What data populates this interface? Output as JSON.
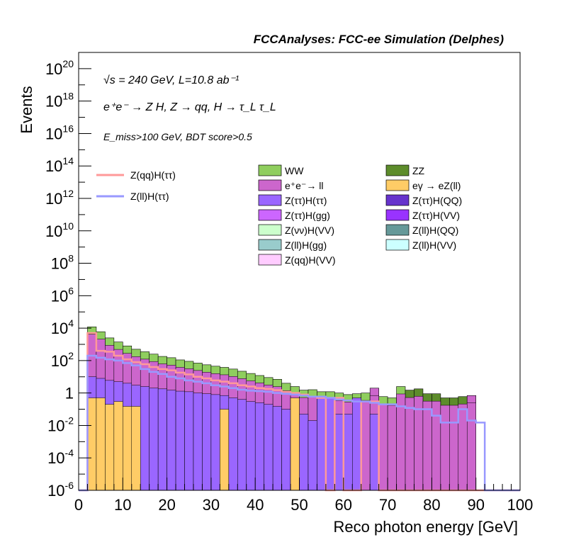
{
  "header": "FCCAnalyses: FCC-ee Simulation (Delphes)",
  "annotations": {
    "line1": "√s = 240 GeV, L=10.8 ab⁻¹",
    "line2": "e⁺e⁻ → Z H, Z → qq, H → τ_L τ_L",
    "line3": "E_miss>100 GeV, BDT score>0.5"
  },
  "chart_data": {
    "type": "bar",
    "subtype": "stacked-histogram",
    "xlabel": "Reco photon energy [GeV]",
    "ylabel": "Events",
    "xlim": [
      0,
      100
    ],
    "ylim": [
      1e-06,
      1e+21
    ],
    "yscale": "log",
    "xticks": [
      "0",
      "10",
      "20",
      "30",
      "40",
      "50",
      "60",
      "70",
      "80",
      "90",
      "100"
    ],
    "yticks": [
      "10^-6",
      "10^-4",
      "10^-2",
      "1",
      "10^2",
      "10^4",
      "10^6",
      "10^8",
      "10^10",
      "10^12",
      "10^14",
      "10^16",
      "10^18",
      "10^20"
    ],
    "bin_width": 2,
    "bin_edges_start": 0,
    "legend_placement": "upper-middle",
    "stacked_totals": [
      0,
      12000,
      6000,
      2500,
      1400,
      800,
      500,
      350,
      250,
      180,
      150,
      110,
      90,
      70,
      55,
      45,
      38,
      30,
      22,
      16,
      12,
      9,
      7,
      4,
      2.5,
      1.5,
      1.6,
      1.2,
      1.2,
      1.0,
      0.8,
      0.9,
      1.0,
      2.0,
      0.6,
      0.5,
      2.5,
      1.5,
      1.8,
      0.9,
      0.9,
      0.5,
      0.5,
      0.6,
      0.7,
      0,
      0,
      0,
      0,
      0
    ],
    "series": [
      {
        "name": "WW",
        "color": "#8fce5e"
      },
      {
        "name": "ZZ",
        "color": "#5d8c2b"
      },
      {
        "name": "e⁺e⁻→ ll",
        "color": "#cc66cc"
      },
      {
        "name": "eγ → eZ(ll)",
        "color": "#ffcc66"
      },
      {
        "name": "Z(ττ)H(ττ)",
        "color": "#9a66ff"
      },
      {
        "name": "Z(ττ)H(QQ)",
        "color": "#6633cc"
      },
      {
        "name": "Z(ττ)H(gg)",
        "color": "#cc66ff"
      },
      {
        "name": "Z(ττ)H(VV)",
        "color": "#9933ff"
      },
      {
        "name": "Z(νν)H(VV)",
        "color": "#ccffcc"
      },
      {
        "name": "Z(ll)H(QQ)",
        "color": "#669999"
      },
      {
        "name": "Z(ll)H(gg)",
        "color": "#99cccc"
      },
      {
        "name": "Z(ll)H(VV)",
        "color": "#ccffff"
      },
      {
        "name": "Z(qq)H(VV)",
        "color": "#ffccff"
      }
    ],
    "signals": [
      {
        "name": "Z(qq)H(ττ)",
        "color": "#ff9999",
        "values": [
          0,
          5000,
          400,
          350,
          200,
          120,
          80,
          60,
          40,
          30,
          25,
          18,
          14,
          10,
          8,
          6,
          5,
          4,
          3,
          2.5,
          2,
          1.8,
          1.5,
          1.2,
          1.0,
          0.8,
          0.6,
          0.5,
          0,
          0.5,
          0,
          0,
          0.3,
          0.3,
          0,
          0,
          0,
          0,
          0,
          0,
          0,
          0,
          0,
          0,
          0,
          0,
          0,
          0,
          0,
          0
        ]
      },
      {
        "name": "Z(ll)H(ττ)",
        "color": "#9999ff",
        "values": [
          0,
          200,
          150,
          120,
          100,
          70,
          50,
          30,
          20,
          15,
          10,
          8,
          6,
          5,
          4,
          3,
          2.5,
          2,
          1.6,
          1.4,
          1.3,
          1.2,
          1.0,
          0.9,
          0.8,
          0.7,
          0.6,
          0.6,
          0.5,
          0.4,
          0.35,
          0.3,
          0.3,
          0.25,
          0.2,
          0.2,
          0.15,
          0.12,
          0.1,
          0.1,
          0.04,
          0.015,
          0.015,
          0.1,
          0.02,
          0.015,
          1e-06,
          0,
          0,
          0
        ]
      }
    ],
    "stack_components": {
      "eγ → eZ(ll)": [
        0,
        0.5,
        0.5,
        0.2,
        0.3,
        0.15,
        0.15,
        0,
        0,
        0,
        0,
        0,
        0,
        0,
        0,
        0,
        0.1,
        0,
        0,
        0,
        0,
        0,
        0,
        0,
        0.5,
        0,
        0,
        0,
        0,
        0,
        0,
        0,
        0,
        0,
        0,
        0,
        0,
        0,
        0,
        0,
        0,
        0,
        0,
        0,
        0,
        0,
        0,
        0,
        0,
        0
      ],
      "Z(ττ)H(ττ)": [
        0,
        10,
        8,
        6,
        5,
        4,
        3,
        2.5,
        2,
        1.8,
        1.5,
        1.3,
        1.2,
        1.0,
        0.9,
        0.8,
        0.7,
        0.5,
        0.4,
        0.3,
        0.25,
        0.2,
        0.15,
        0.1,
        0.02,
        0.05,
        0.02,
        0.5,
        0.5,
        0.05,
        0.05,
        0.5,
        0,
        0.05,
        0,
        0,
        0,
        0,
        0,
        0,
        0,
        0,
        0,
        0,
        0,
        0,
        0,
        0,
        0,
        0
      ]
    }
  }
}
